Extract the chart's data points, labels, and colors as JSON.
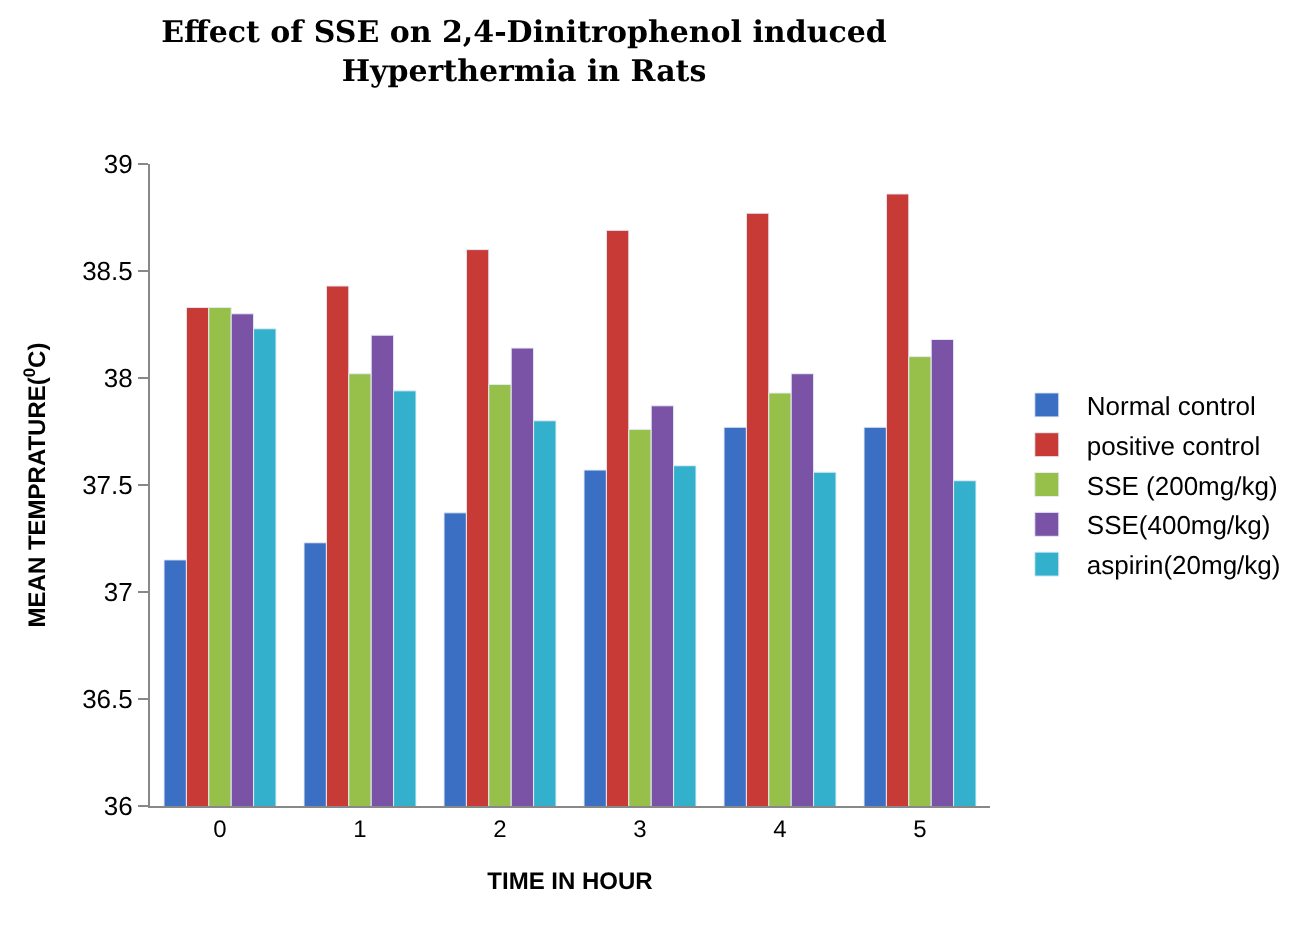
{
  "chart_data": {
    "type": "bar",
    "title": "Effect of SSE on 2,4-Dinitrophenol induced\nHyperthermia in Rats",
    "xlabel": "TIME IN HOUR",
    "ylabel": "MEAN TEMPRATURE($^{0}$C)",
    "categories": [
      "0",
      "1",
      "2",
      "3",
      "4",
      "5"
    ],
    "series": [
      {
        "name": "Normal control",
        "color": "#3b6fc4",
        "values": [
          37.15,
          37.23,
          37.37,
          37.57,
          37.77,
          37.77
        ]
      },
      {
        "name": "positive control",
        "color": "#c83a35",
        "values": [
          38.33,
          38.43,
          38.6,
          38.69,
          38.77,
          38.86
        ]
      },
      {
        "name": "SSE (200mg/kg)",
        "color": "#97c04a",
        "values": [
          38.33,
          38.02,
          37.97,
          37.76,
          37.93,
          38.1
        ]
      },
      {
        "name": "SSE(400mg/kg)",
        "color": "#7a52a6",
        "values": [
          38.3,
          38.2,
          38.14,
          37.87,
          38.02,
          38.18
        ]
      },
      {
        "name": "aspirin(20mg/kg)",
        "color": "#33b1cc",
        "values": [
          38.23,
          37.94,
          37.8,
          37.59,
          37.56,
          37.52
        ]
      }
    ],
    "ylim": [
      36,
      39
    ],
    "yticks": [
      36,
      36.5,
      37,
      37.5,
      38,
      38.5,
      39
    ],
    "grid": false,
    "legend": "right"
  }
}
